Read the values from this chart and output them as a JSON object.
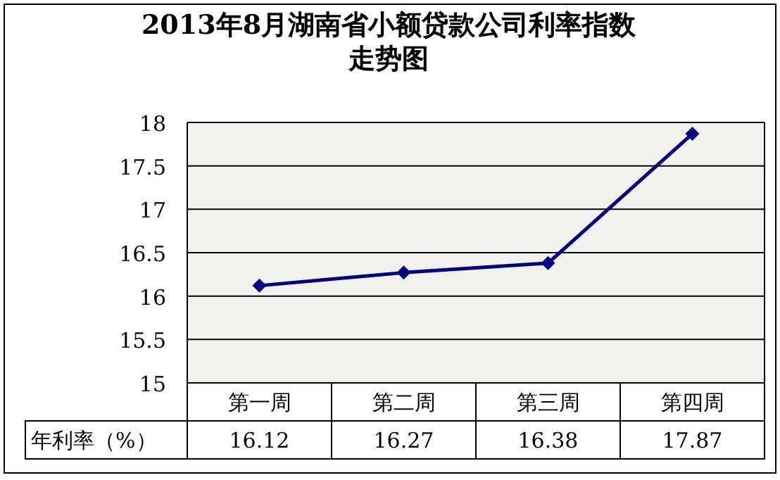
{
  "chart_data": {
    "type": "line",
    "title": "2013年8月湖南省小额贷款公司利率指数走势图",
    "categories": [
      "第一周",
      "第二周",
      "第三周",
      "第四周"
    ],
    "series": [
      {
        "name": "年利率（%）",
        "color": "#000080",
        "values": [
          16.12,
          16.27,
          16.38,
          17.87
        ]
      }
    ],
    "ylim": [
      15,
      18
    ],
    "yticks": [
      15,
      15.5,
      16,
      16.5,
      17,
      17.5,
      18
    ],
    "grid": "y",
    "marker": "diamond",
    "data_labels": true
  }
}
